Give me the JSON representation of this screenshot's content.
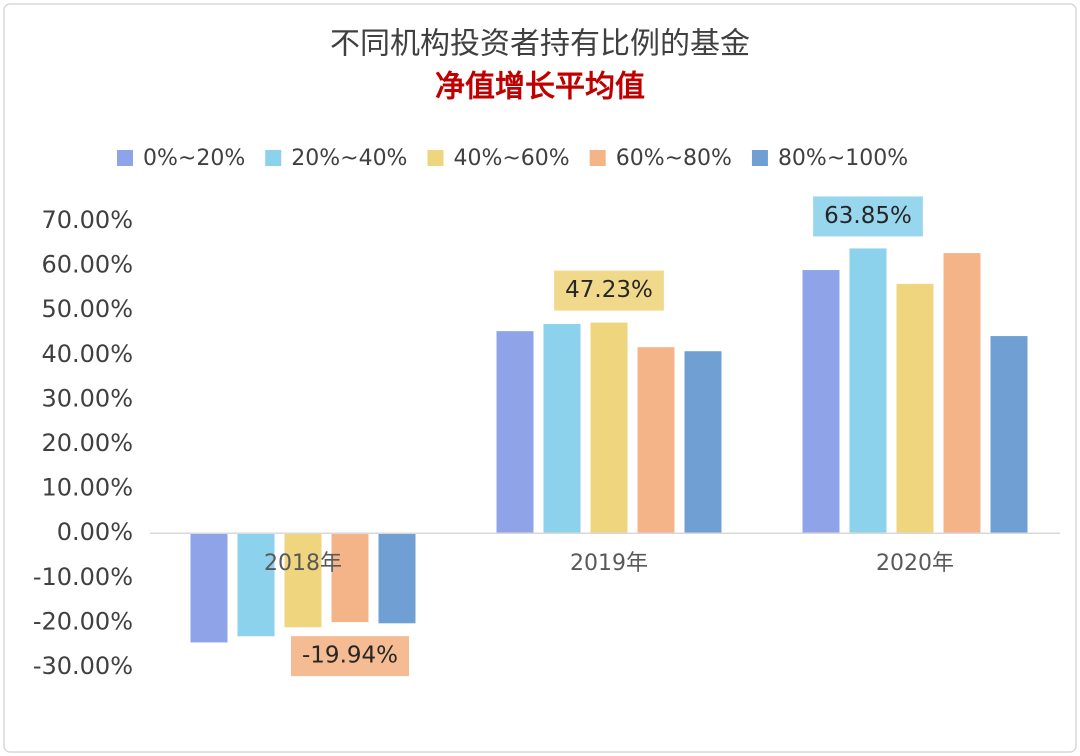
{
  "chart_data": {
    "type": "bar",
    "title": "不同机构投资者持有比例的基金",
    "subtitle": "净值增长平均值",
    "categories": [
      "2018年",
      "2019年",
      "2020年"
    ],
    "series": [
      {
        "name": "0%~20%",
        "color": "#8ea3e8",
        "values": [
          -24.5,
          45.3,
          59.0
        ]
      },
      {
        "name": "20%~40%",
        "color": "#8dd2ec",
        "values": [
          -23.1,
          46.9,
          63.85
        ],
        "value_labels": [
          null,
          null,
          "63.85%"
        ]
      },
      {
        "name": "40%~60%",
        "color": "#eed57e",
        "values": [
          -21.1,
          47.23,
          55.9
        ],
        "value_labels": [
          null,
          "47.23%",
          null
        ]
      },
      {
        "name": "60%~80%",
        "color": "#f4b487",
        "values": [
          -19.94,
          41.7,
          62.8
        ],
        "value_labels": [
          "-19.94%",
          null,
          null
        ]
      },
      {
        "name": "80%~100%",
        "color": "#6f9fd3",
        "values": [
          -20.2,
          40.8,
          44.2
        ]
      }
    ],
    "ylim": [
      -30,
      70
    ],
    "yticks": [
      {
        "value": -30,
        "label": "-30.00%"
      },
      {
        "value": -20,
        "label": "-20.00%"
      },
      {
        "value": -10,
        "label": "-10.00%"
      },
      {
        "value": 0,
        "label": "0.00%"
      },
      {
        "value": 10,
        "label": "10.00%"
      },
      {
        "value": 20,
        "label": "20.00%"
      },
      {
        "value": 30,
        "label": "30.00%"
      },
      {
        "value": 40,
        "label": "40.00%"
      },
      {
        "value": 50,
        "label": "50.00%"
      },
      {
        "value": 60,
        "label": "60.00%"
      },
      {
        "value": 70,
        "label": "70.00%"
      }
    ],
    "grid": false,
    "legend": "top"
  }
}
